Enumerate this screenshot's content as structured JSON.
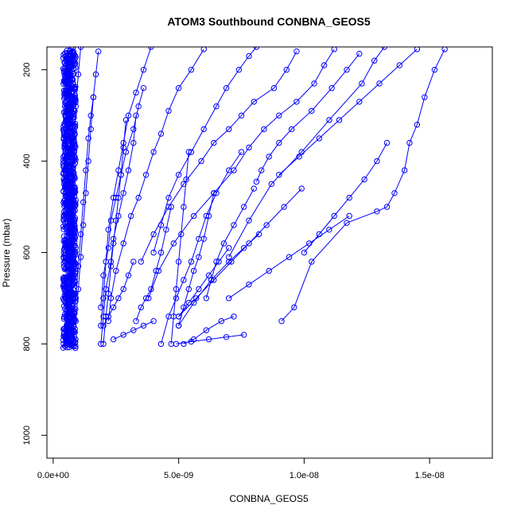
{
  "chart_data": {
    "type": "scatter",
    "title": "ATOM3 Southbound CONBNA_GEOS5",
    "xlabel": "CONBNA_GEOS5",
    "ylabel": "Pressure (mbar)",
    "xlim": [
      -2.5e-10,
      1.75e-08
    ],
    "ylim": [
      1050,
      150
    ],
    "y_reversed": true,
    "grid": false,
    "x_ticks": [
      {
        "value": 0,
        "label": "0.0e+00"
      },
      {
        "value": 5e-09,
        "label": "5.0e-09"
      },
      {
        "value": 1e-08,
        "label": "1.0e-08"
      },
      {
        "value": 1.5e-08,
        "label": "1.5e-08"
      }
    ],
    "y_ticks": [
      {
        "value": 200,
        "label": "200"
      },
      {
        "value": 400,
        "label": "400"
      },
      {
        "value": 600,
        "label": "600"
      },
      {
        "value": 800,
        "label": "800"
      },
      {
        "value": 1000,
        "label": "1000"
      }
    ],
    "series_color": "#0000ff",
    "profiles": [
      {
        "x": [
          1.56e-08,
          1.52e-08,
          1.48e-08,
          1.45e-08,
          1.42e-08,
          1.4e-08,
          1.36e-08,
          1.33e-08,
          1.29e-08,
          1.17e-08,
          1.03e-08,
          9.6e-09,
          9.1e-09
        ],
        "y": [
          155,
          200,
          260,
          320,
          360,
          420,
          470,
          500,
          510,
          535,
          620,
          720,
          750
        ]
      },
      {
        "x": [
          1.32e-08,
          1.28e-08,
          1.23e-08,
          1.1e-08,
          9.9e-09,
          8.7e-09,
          7.8e-09,
          7e-09
        ],
        "y": [
          150,
          180,
          230,
          310,
          380,
          450,
          530,
          610
        ]
      },
      {
        "x": [
          1.22e-08,
          1.17e-08,
          1.11e-08,
          1.03e-08,
          9.5e-09,
          9e-09,
          8.6e-09,
          8.3e-09,
          8.1e-09
        ],
        "y": [
          165,
          200,
          240,
          290,
          330,
          360,
          390,
          420,
          445
        ]
      },
      {
        "x": [
          1.12e-08,
          1.08e-08,
          1.04e-08,
          9.7e-09,
          9e-09,
          8.4e-09,
          7.8e-09,
          7.2e-09,
          6.4e-09,
          5.6e-09,
          4.8e-09,
          4.2e-09,
          3.8e-09
        ],
        "y": [
          155,
          190,
          230,
          270,
          300,
          330,
          370,
          420,
          470,
          520,
          580,
          640,
          700
        ]
      },
      {
        "x": [
          9.7e-09,
          9.3e-09,
          8.8e-09,
          8e-09,
          7.5e-09,
          7e-09,
          6.4e-09,
          5.9e-09,
          5.2e-09,
          4.6e-09,
          4e-09,
          3.5e-09
        ],
        "y": [
          160,
          200,
          240,
          270,
          300,
          330,
          360,
          400,
          450,
          500,
          560,
          620
        ]
      },
      {
        "x": [
          8.1e-09,
          7.8e-09,
          7.4e-09,
          6.9e-09,
          6.5e-09,
          6e-09,
          5.5e-09,
          5e-09,
          4.6e-09,
          4.3e-09,
          4e-09
        ],
        "y": [
          150,
          170,
          200,
          240,
          280,
          330,
          380,
          430,
          480,
          540,
          600
        ]
      },
      {
        "x": [
          6e-09,
          5.5e-09,
          5e-09,
          4.6e-09,
          4.3e-09,
          4e-09,
          3.7e-09,
          3.4e-09,
          3.1e-09,
          2.8e-09,
          2.5e-09,
          2.3e-09,
          2.2e-09
        ],
        "y": [
          155,
          200,
          240,
          290,
          340,
          380,
          430,
          480,
          520,
          580,
          640,
          700,
          750
        ]
      },
      {
        "x": [
          3.9e-09,
          3.6e-09,
          3.3e-09,
          3e-09,
          2.8e-09,
          2.6e-09,
          2.4e-09,
          2.2e-09,
          2.1e-09,
          2e-09,
          1.9e-09
        ],
        "y": [
          150,
          200,
          250,
          300,
          360,
          420,
          480,
          550,
          620,
          700,
          760
        ]
      },
      {
        "x": [
          3.6e-09,
          3.4e-09,
          3.2e-09,
          2.9e-09,
          2.7e-09,
          2.5e-09,
          2.3e-09,
          2.2e-09,
          2e-09,
          1.9e-09
        ],
        "y": [
          240,
          280,
          330,
          380,
          430,
          480,
          530,
          590,
          650,
          720
        ]
      },
      {
        "x": [
          3.3e-09,
          3.2e-09,
          3e-09,
          2.8e-09,
          2.6e-09,
          2.4e-09,
          2.3e-09,
          2.1e-09,
          2e-09,
          1.9e-09
        ],
        "y": [
          300,
          360,
          420,
          470,
          520,
          570,
          620,
          680,
          740,
          800
        ]
      },
      {
        "x": [
          2.9e-09,
          2.8e-09,
          2.7e-09,
          2.6e-09,
          2.5e-09,
          2.4e-09,
          2.3e-09,
          2.2e-09,
          2.1e-09,
          2e-09
        ],
        "y": [
          310,
          370,
          430,
          480,
          530,
          580,
          630,
          690,
          740,
          800
        ]
      },
      {
        "x": [
          1.8e-09,
          1.7e-09,
          1.6e-09,
          1.5e-09,
          1.4e-09,
          1.3e-09,
          1.2e-09,
          1.1e-09,
          1e-09,
          9e-10
        ],
        "y": [
          160,
          210,
          260,
          330,
          400,
          470,
          540,
          610,
          680,
          750
        ]
      },
      {
        "x": [
          1.6e-09,
          1.5e-09,
          1.4e-09,
          1.3e-09,
          1.2e-09,
          1.1e-09,
          1e-09,
          9e-10,
          8e-10
        ],
        "y": [
          260,
          300,
          350,
          420,
          490,
          560,
          630,
          700,
          770
        ]
      },
      {
        "x": [
          1.1e-09,
          1e-09,
          9e-10,
          8.5e-10,
          8e-10,
          7.5e-10,
          7e-10,
          6.5e-10,
          6e-10
        ],
        "y": [
          150,
          210,
          280,
          360,
          440,
          520,
          600,
          680,
          760
        ]
      },
      {
        "x": [
          7.5e-09,
          7e-09,
          6.5e-09,
          6.1e-09,
          5.8e-09,
          5.5e-09,
          5.2e-09,
          4.9e-09,
          4.6e-09,
          4.3e-09
        ],
        "y": [
          380,
          420,
          470,
          520,
          570,
          620,
          660,
          700,
          740,
          800
        ]
      },
      {
        "x": [
          8.2e-09,
          7.6e-09,
          7e-09,
          6.3e-09,
          5.6e-09,
          5e-09
        ],
        "y": [
          560,
          590,
          620,
          660,
          710,
          760
        ]
      },
      {
        "x": [
          6.4e-09,
          6.2e-09,
          6e-09,
          5.8e-09,
          5.6e-09,
          5.4e-09,
          5.2e-09,
          5e-09
        ],
        "y": [
          470,
          520,
          570,
          610,
          640,
          680,
          720,
          760
        ]
      },
      {
        "x": [
          5.4e-09,
          5.3e-09,
          5.2e-09,
          5.1e-09,
          5e-09,
          4.9e-09,
          4.8e-09,
          4.7e-09
        ],
        "y": [
          380,
          440,
          500,
          560,
          620,
          680,
          740,
          800
        ]
      },
      {
        "x": [
          4.7e-09,
          4.5e-09,
          4.3e-09,
          4.1e-09,
          3.9e-09,
          3.7e-09,
          3.5e-09,
          3.3e-09
        ],
        "y": [
          500,
          550,
          600,
          640,
          680,
          700,
          720,
          750
        ]
      },
      {
        "x": [
          8e-09,
          7.6e-09,
          7.2e-09,
          6.8e-09,
          6.5e-09,
          6.3e-09,
          6.1e-09
        ],
        "y": [
          460,
          500,
          540,
          580,
          620,
          660,
          700
        ]
      },
      {
        "x": [
          5.2e-09,
          5.6e-09,
          6.1e-09,
          6.7e-09,
          7.2e-09
        ],
        "y": [
          800,
          790,
          770,
          750,
          740
        ]
      },
      {
        "x": [
          7e-09,
          6.6e-09,
          6.2e-09,
          5.8e-09,
          5.4e-09,
          5e-09
        ],
        "y": [
          590,
          620,
          650,
          680,
          710,
          740
        ]
      },
      {
        "x": [
          9.9e-09,
          9.2e-09,
          8.5e-09,
          7.8e-09,
          7.1e-09,
          6.4e-09,
          5.7e-09,
          5e-09
        ],
        "y": [
          460,
          500,
          540,
          580,
          620,
          660,
          700,
          740
        ]
      },
      {
        "x": [
          3.2e-09,
          3e-09,
          2.8e-09,
          2.6e-09,
          2.4e-09,
          2.2e-09,
          2e-09
        ],
        "y": [
          620,
          650,
          680,
          700,
          720,
          740,
          760
        ]
      },
      {
        "x": [
          4e-09,
          3.6e-09,
          3.2e-09,
          2.8e-09,
          2.4e-09
        ],
        "y": [
          750,
          760,
          770,
          780,
          790
        ]
      },
      {
        "x": [
          7.6e-09,
          6.9e-09,
          6.2e-09,
          5.5e-09,
          4.9e-09
        ],
        "y": [
          780,
          785,
          790,
          795,
          800
        ]
      },
      {
        "x": [
          1.33e-08,
          1.29e-08,
          1.24e-08,
          1.18e-08,
          1.12e-08,
          1.06e-08,
          1e-08
        ],
        "y": [
          360,
          400,
          440,
          480,
          520,
          560,
          600
        ]
      },
      {
        "x": [
          1.45e-08,
          1.38e-08,
          1.3e-08,
          1.22e-08,
          1.14e-08,
          1.06e-08,
          9.8e-09,
          9e-09
        ],
        "y": [
          155,
          190,
          230,
          270,
          310,
          350,
          390,
          430
        ]
      },
      {
        "x": [
          1.18e-08,
          1.1e-08,
          1.02e-08,
          9.4e-09,
          8.6e-09,
          7.8e-09,
          7e-09
        ],
        "y": [
          520,
          550,
          580,
          610,
          640,
          670,
          700
        ]
      }
    ],
    "near_zero_cloud": {
      "x_min": 4e-10,
      "x_max": 9e-10,
      "y_min": 150,
      "y_max": 810
    }
  }
}
